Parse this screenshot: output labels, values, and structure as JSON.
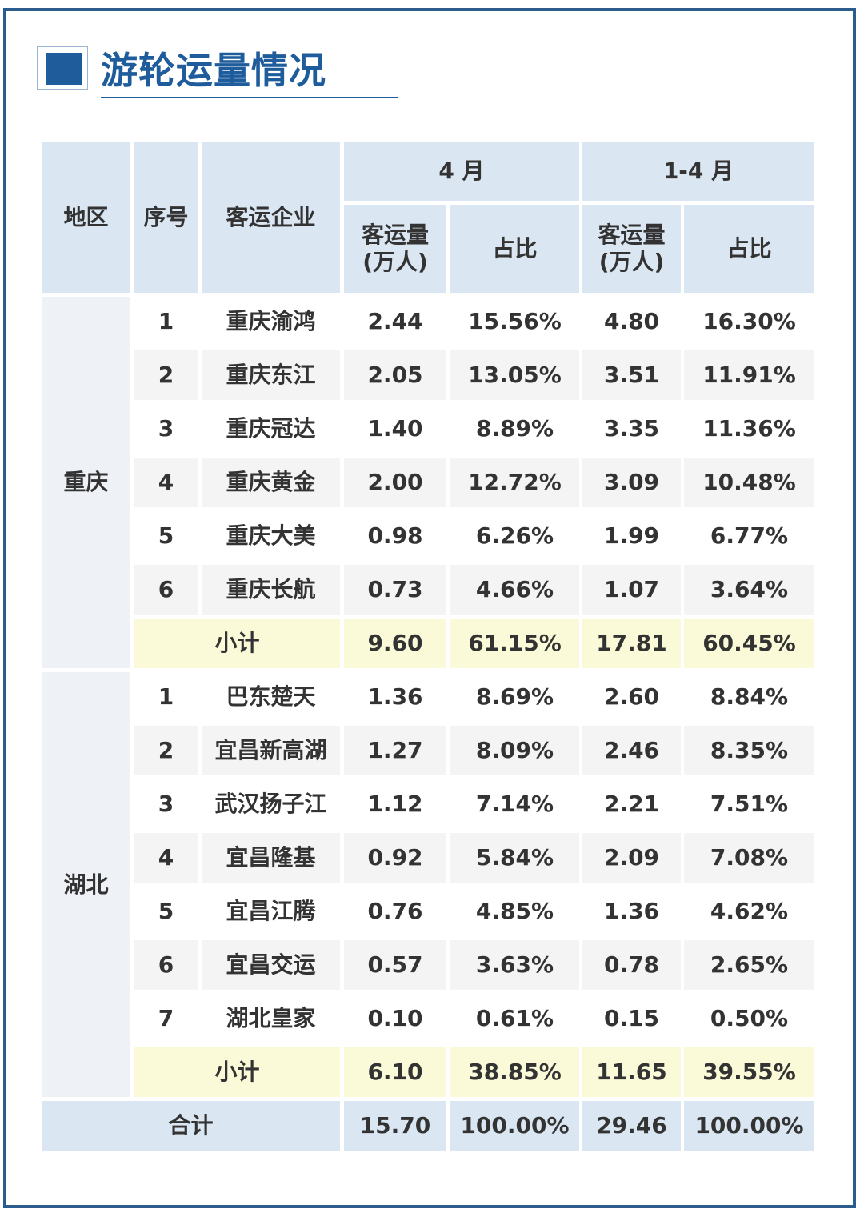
{
  "title": "游轮运量情况",
  "table": {
    "headers": {
      "region": "地区",
      "seq": "序号",
      "company": "客运企业",
      "april": "4 月",
      "jan_apr": "1-4 月",
      "volume_line1": "客运量",
      "volume_line2": "(万人)",
      "share": "占比"
    },
    "groups": [
      {
        "region": "重庆",
        "rows": [
          {
            "seq": "1",
            "company": "重庆渝鸿",
            "apr_vol": "2.44",
            "apr_share": "15.56%",
            "ytd_vol": "4.80",
            "ytd_share": "16.30%"
          },
          {
            "seq": "2",
            "company": "重庆东江",
            "apr_vol": "2.05",
            "apr_share": "13.05%",
            "ytd_vol": "3.51",
            "ytd_share": "11.91%"
          },
          {
            "seq": "3",
            "company": "重庆冠达",
            "apr_vol": "1.40",
            "apr_share": "8.89%",
            "ytd_vol": "3.35",
            "ytd_share": "11.36%"
          },
          {
            "seq": "4",
            "company": "重庆黄金",
            "apr_vol": "2.00",
            "apr_share": "12.72%",
            "ytd_vol": "3.09",
            "ytd_share": "10.48%"
          },
          {
            "seq": "5",
            "company": "重庆大美",
            "apr_vol": "0.98",
            "apr_share": "6.26%",
            "ytd_vol": "1.99",
            "ytd_share": "6.77%"
          },
          {
            "seq": "6",
            "company": "重庆长航",
            "apr_vol": "0.73",
            "apr_share": "4.66%",
            "ytd_vol": "1.07",
            "ytd_share": "3.64%"
          }
        ],
        "subtotal": {
          "label": "小计",
          "apr_vol": "9.60",
          "apr_share": "61.15%",
          "ytd_vol": "17.81",
          "ytd_share": "60.45%"
        }
      },
      {
        "region": "湖北",
        "rows": [
          {
            "seq": "1",
            "company": "巴东楚天",
            "apr_vol": "1.36",
            "apr_share": "8.69%",
            "ytd_vol": "2.60",
            "ytd_share": "8.84%"
          },
          {
            "seq": "2",
            "company": "宜昌新高湖",
            "apr_vol": "1.27",
            "apr_share": "8.09%",
            "ytd_vol": "2.46",
            "ytd_share": "8.35%"
          },
          {
            "seq": "3",
            "company": "武汉扬子江",
            "apr_vol": "1.12",
            "apr_share": "7.14%",
            "ytd_vol": "2.21",
            "ytd_share": "7.51%"
          },
          {
            "seq": "4",
            "company": "宜昌隆基",
            "apr_vol": "0.92",
            "apr_share": "5.84%",
            "ytd_vol": "2.09",
            "ytd_share": "7.08%"
          },
          {
            "seq": "5",
            "company": "宜昌江腾",
            "apr_vol": "0.76",
            "apr_share": "4.85%",
            "ytd_vol": "1.36",
            "ytd_share": "4.62%"
          },
          {
            "seq": "6",
            "company": "宜昌交运",
            "apr_vol": "0.57",
            "apr_share": "3.63%",
            "ytd_vol": "0.78",
            "ytd_share": "2.65%"
          },
          {
            "seq": "7",
            "company": "湖北皇家",
            "apr_vol": "0.10",
            "apr_share": "0.61%",
            "ytd_vol": "0.15",
            "ytd_share": "0.50%"
          }
        ],
        "subtotal": {
          "label": "小计",
          "apr_vol": "6.10",
          "apr_share": "38.85%",
          "ytd_vol": "11.65",
          "ytd_share": "39.55%"
        }
      }
    ],
    "total": {
      "label": "合计",
      "apr_vol": "15.70",
      "apr_share": "100.00%",
      "ytd_vol": "29.46",
      "ytd_share": "100.00%"
    }
  }
}
